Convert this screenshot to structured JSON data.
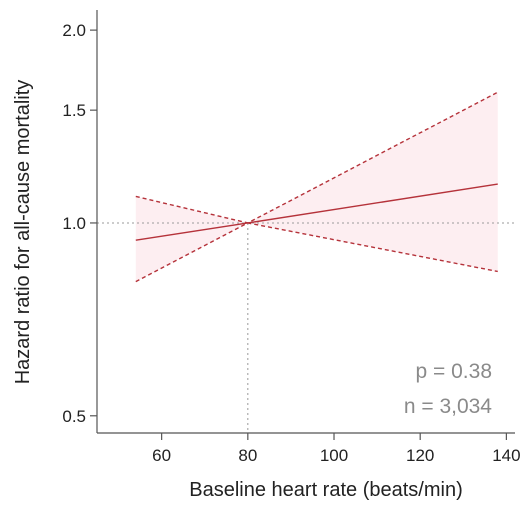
{
  "chart_data": {
    "type": "line",
    "title": "",
    "xlabel": "Baseline heart rate (beats/min)",
    "ylabel": "Hazard ratio for all-cause mortality",
    "xlim": [
      45,
      142
    ],
    "ylim": [
      0.47,
      2.15
    ],
    "y_scale": "log",
    "x_ticks": [
      60,
      80,
      100,
      120,
      140
    ],
    "x_tick_labels": [
      "60",
      "80",
      "100",
      "120",
      "140"
    ],
    "y_ticks": [
      0.5,
      1.0,
      1.5,
      2.0
    ],
    "y_tick_labels": [
      "0.5",
      "1.0",
      "1.5",
      "2.0"
    ],
    "reference_lines": {
      "x": 80,
      "y": 1.0
    },
    "grid": false,
    "legend": "none",
    "series": [
      {
        "role": "estimate",
        "x": [
          54,
          80,
          138
        ],
        "y": [
          0.94,
          1.0,
          1.15
        ]
      },
      {
        "role": "upper_ci",
        "x": [
          54,
          80,
          138
        ],
        "y": [
          1.1,
          1.0,
          1.6
        ]
      },
      {
        "role": "lower_ci",
        "x": [
          54,
          80,
          138
        ],
        "y": [
          0.81,
          1.0,
          0.84
        ]
      }
    ],
    "annotations": [
      "p = 0.38",
      "n = 3,034"
    ],
    "colors": {
      "line": "#b5323a",
      "band": "#fdeef1",
      "reference": "#9a9a9a",
      "axis": "#555555",
      "annotation": "#8a8a8a"
    }
  }
}
